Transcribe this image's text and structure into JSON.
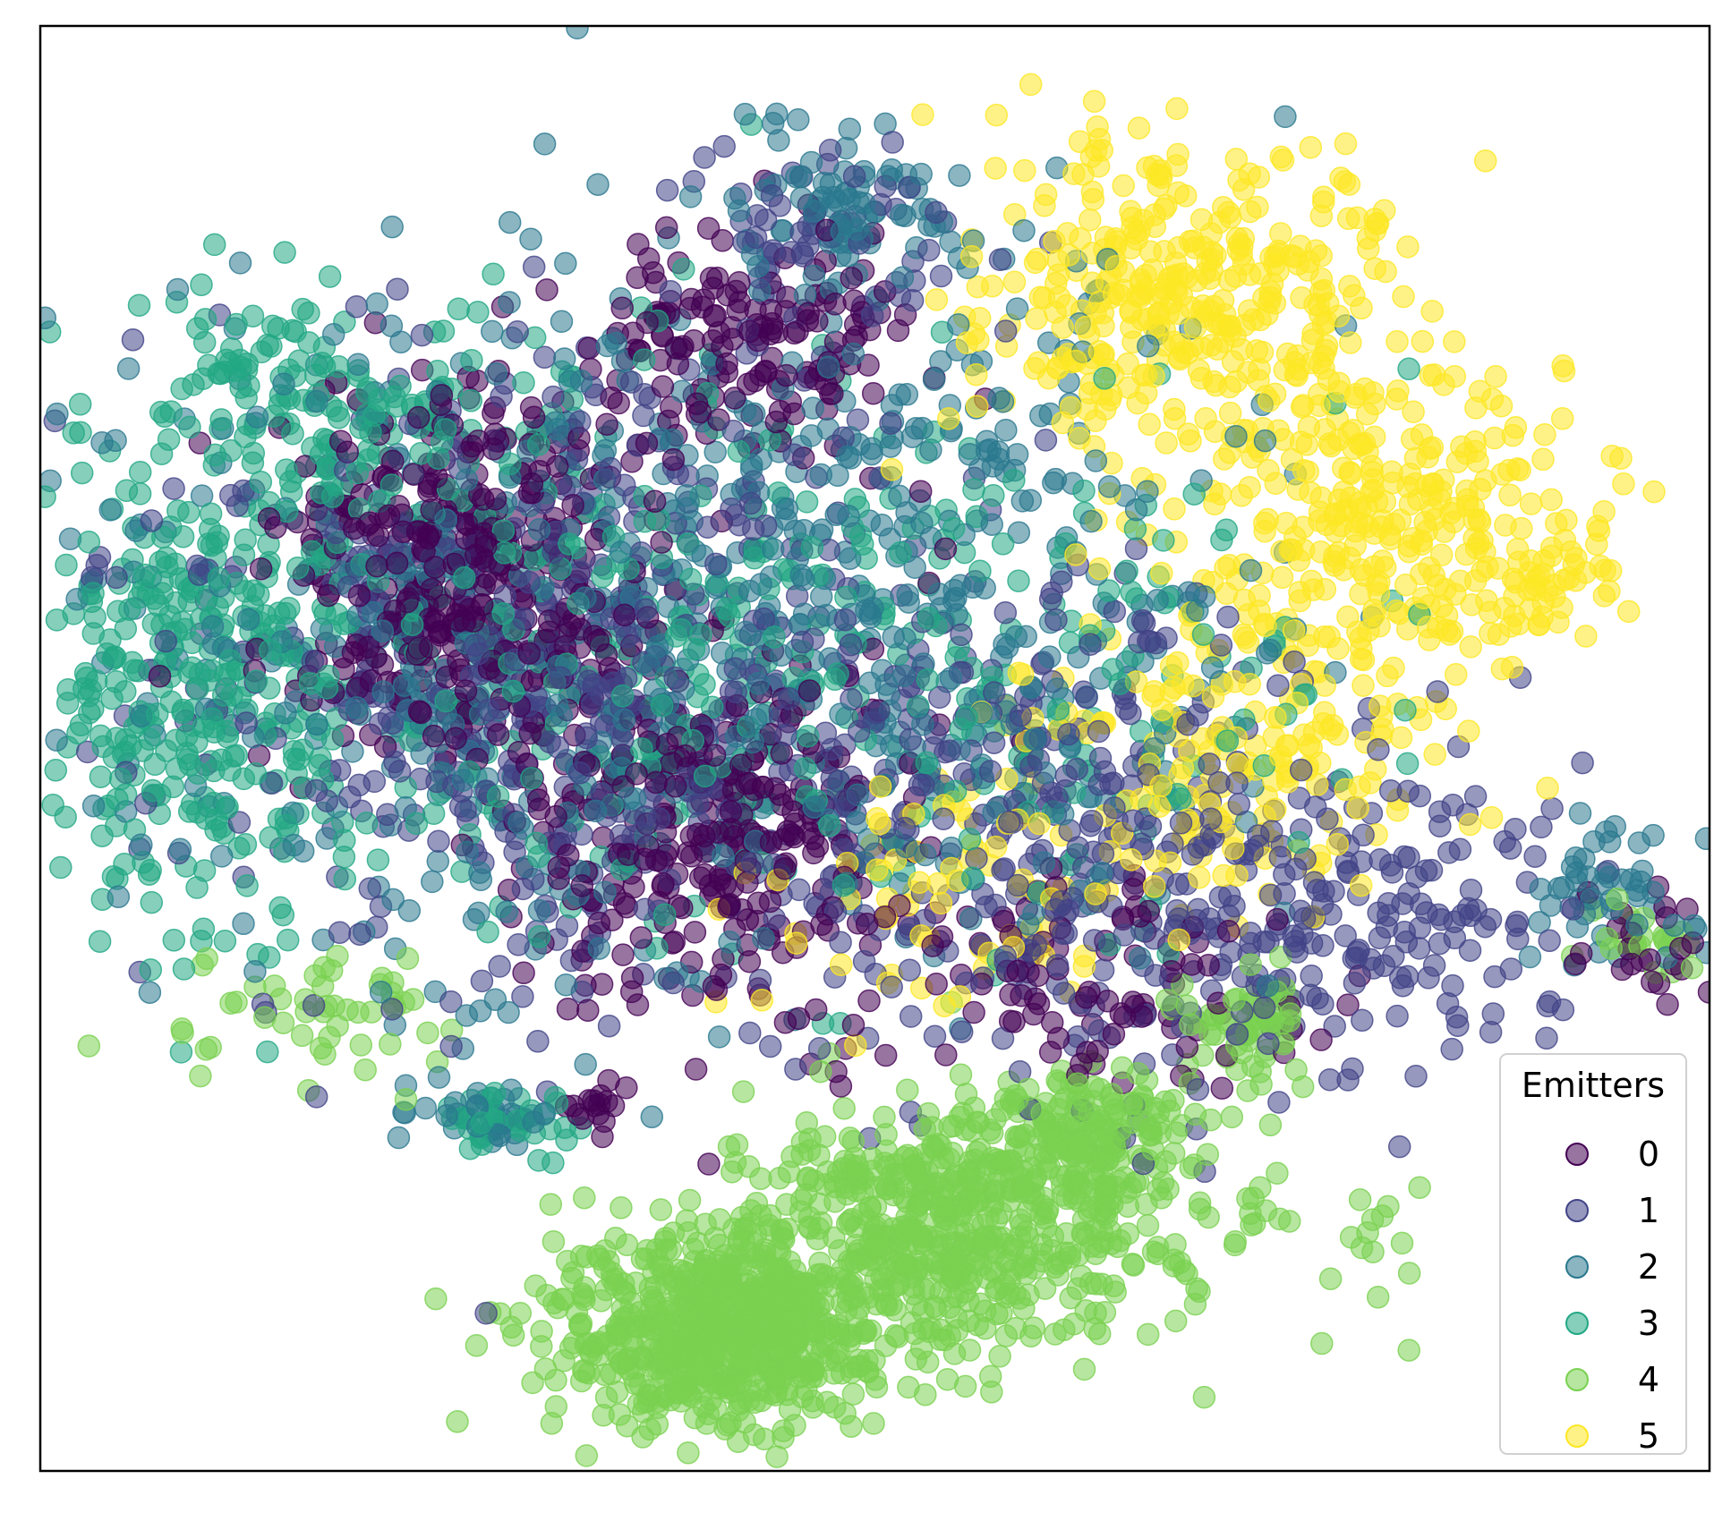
{
  "chart_data": {
    "type": "scatter",
    "title": "",
    "xlabel": "",
    "ylabel": "",
    "xticks": false,
    "yticks": false,
    "grid": false,
    "xlim": [
      0,
      100
    ],
    "ylim": [
      0,
      100
    ],
    "legend": {
      "title": "Emitters",
      "placement": "lower-right"
    },
    "marker_alpha": 0.55,
    "series": [
      {
        "name": "0",
        "color": "#440154",
        "clusters": [
          {
            "cx": 25,
            "cy": 62,
            "sx": 5.0,
            "sy": 6.5,
            "n": 420
          },
          {
            "cx": 40,
            "cy": 44,
            "sx": 6.0,
            "sy": 7.0,
            "n": 320
          },
          {
            "cx": 42,
            "cy": 78,
            "sx": 5.0,
            "sy": 4.0,
            "n": 160
          },
          {
            "cx": 62,
            "cy": 34,
            "sx": 6.0,
            "sy": 4.0,
            "n": 100
          },
          {
            "cx": 97,
            "cy": 37,
            "sx": 2.0,
            "sy": 2.0,
            "n": 25
          },
          {
            "cx": 33,
            "cy": 25,
            "sx": 1.0,
            "sy": 1.0,
            "n": 14
          }
        ]
      },
      {
        "name": "1",
        "color": "#414487",
        "clusters": [
          {
            "cx": 30,
            "cy": 56,
            "sx": 12.0,
            "sy": 11.0,
            "n": 500
          },
          {
            "cx": 60,
            "cy": 45,
            "sx": 10.0,
            "sy": 9.0,
            "n": 320
          },
          {
            "cx": 78,
            "cy": 38,
            "sx": 8.0,
            "sy": 6.0,
            "n": 200
          },
          {
            "cx": 47,
            "cy": 85,
            "sx": 5.0,
            "sy": 4.0,
            "n": 60
          }
        ]
      },
      {
        "name": "2",
        "color": "#2a788e",
        "clusters": [
          {
            "cx": 30,
            "cy": 58,
            "sx": 14.0,
            "sy": 12.0,
            "n": 500
          },
          {
            "cx": 55,
            "cy": 60,
            "sx": 10.0,
            "sy": 12.0,
            "n": 280
          },
          {
            "cx": 48,
            "cy": 87,
            "sx": 4.0,
            "sy": 3.0,
            "n": 80
          },
          {
            "cx": 27,
            "cy": 25,
            "sx": 2.0,
            "sy": 1.2,
            "n": 35
          },
          {
            "cx": 94,
            "cy": 40,
            "sx": 3.0,
            "sy": 2.5,
            "n": 50
          }
        ]
      },
      {
        "name": "3",
        "color": "#22a884",
        "clusters": [
          {
            "cx": 10,
            "cy": 54,
            "sx": 5.0,
            "sy": 8.0,
            "n": 320
          },
          {
            "cx": 17,
            "cy": 74,
            "sx": 5.0,
            "sy": 4.0,
            "n": 140
          },
          {
            "cx": 33,
            "cy": 57,
            "sx": 12.0,
            "sy": 10.0,
            "n": 320
          },
          {
            "cx": 60,
            "cy": 55,
            "sx": 10.0,
            "sy": 9.0,
            "n": 150
          },
          {
            "cx": 28,
            "cy": 24,
            "sx": 2.0,
            "sy": 1.2,
            "n": 35
          }
        ]
      },
      {
        "name": "4",
        "color": "#7ad151",
        "clusters": [
          {
            "cx": 41,
            "cy": 10,
            "sx": 5.0,
            "sy": 3.5,
            "n": 700
          },
          {
            "cx": 54,
            "cy": 17,
            "sx": 6.0,
            "sy": 4.0,
            "n": 520
          },
          {
            "cx": 63,
            "cy": 23,
            "sx": 3.0,
            "sy": 2.5,
            "n": 160
          },
          {
            "cx": 72,
            "cy": 31,
            "sx": 2.0,
            "sy": 2.0,
            "n": 60
          },
          {
            "cx": 70,
            "cy": 16,
            "sx": 7.0,
            "sy": 4.0,
            "n": 60
          },
          {
            "cx": 18,
            "cy": 31,
            "sx": 5.0,
            "sy": 2.5,
            "n": 50
          },
          {
            "cx": 97,
            "cy": 37,
            "sx": 2.0,
            "sy": 1.5,
            "n": 25
          }
        ]
      },
      {
        "name": "5",
        "color": "#fde725",
        "clusters": [
          {
            "cx": 68,
            "cy": 82,
            "sx": 6.0,
            "sy": 5.0,
            "n": 350
          },
          {
            "cx": 80,
            "cy": 66,
            "sx": 6.0,
            "sy": 6.0,
            "n": 320
          },
          {
            "cx": 72,
            "cy": 49,
            "sx": 6.0,
            "sy": 5.0,
            "n": 160
          },
          {
            "cx": 53,
            "cy": 40,
            "sx": 6.0,
            "sy": 5.0,
            "n": 80
          },
          {
            "cx": 90,
            "cy": 61,
            "sx": 2.0,
            "sy": 2.0,
            "n": 40
          }
        ]
      }
    ]
  }
}
